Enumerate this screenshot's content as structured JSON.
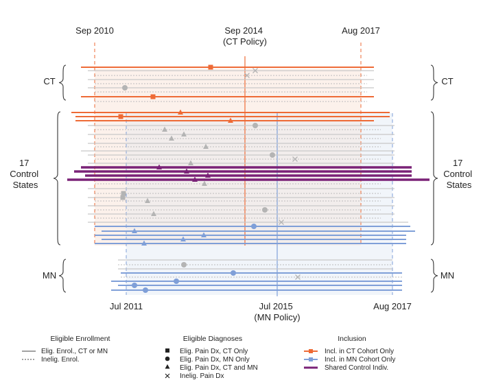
{
  "top_dates": [
    {
      "lines": [
        "Sep 2010"
      ]
    },
    {
      "lines": [
        "Sep 2014",
        "(CT Policy)"
      ]
    },
    {
      "lines": [
        "Aug 2017"
      ]
    }
  ],
  "bottom_dates": [
    {
      "lines": [
        "Jul 2011"
      ]
    },
    {
      "lines": [
        "Jul 2015",
        "(MN Policy)"
      ]
    },
    {
      "lines": [
        "Aug 2017"
      ]
    }
  ],
  "groups": {
    "ct": {
      "lines": [
        "CT"
      ]
    },
    "control": {
      "lines": [
        "17",
        "Control",
        "States"
      ]
    },
    "mn": {
      "lines": [
        "MN"
      ]
    }
  },
  "colors": {
    "ct": "#ee6a35",
    "mn": "#7f9fd8",
    "shared": "#7a2277",
    "grey": "#c8c8c8",
    "ct_fill": "#fbeee7",
    "mn_fill": "#eef3f9"
  },
  "legend": {
    "enrollment": {
      "title": "Eligible Enrollment",
      "items": [
        {
          "style": "solid",
          "label": "Elig. Enrol., CT or MN"
        },
        {
          "style": "dotted",
          "label": "Inelig. Enrol."
        }
      ]
    },
    "diagnoses": {
      "title": "Eligible Diagnoses",
      "items": [
        {
          "marker": "square",
          "label": "Elig. Pain Dx, CT Only"
        },
        {
          "marker": "circle",
          "label": "Elig. Pain Dx, MN Only"
        },
        {
          "marker": "triangle",
          "label": "Elig. Pain Dx, CT and MN"
        },
        {
          "marker": "x",
          "label": "Inelig. Pain Dx"
        }
      ]
    },
    "inclusion": {
      "title": "Inclusion",
      "items": [
        {
          "kind": "ct",
          "label": "Incl. in CT Cohort Only"
        },
        {
          "kind": "mn",
          "label": "Incl. in MN Cohort Only"
        },
        {
          "kind": "shared",
          "label": "Shared Control Indiv."
        }
      ]
    }
  }
}
